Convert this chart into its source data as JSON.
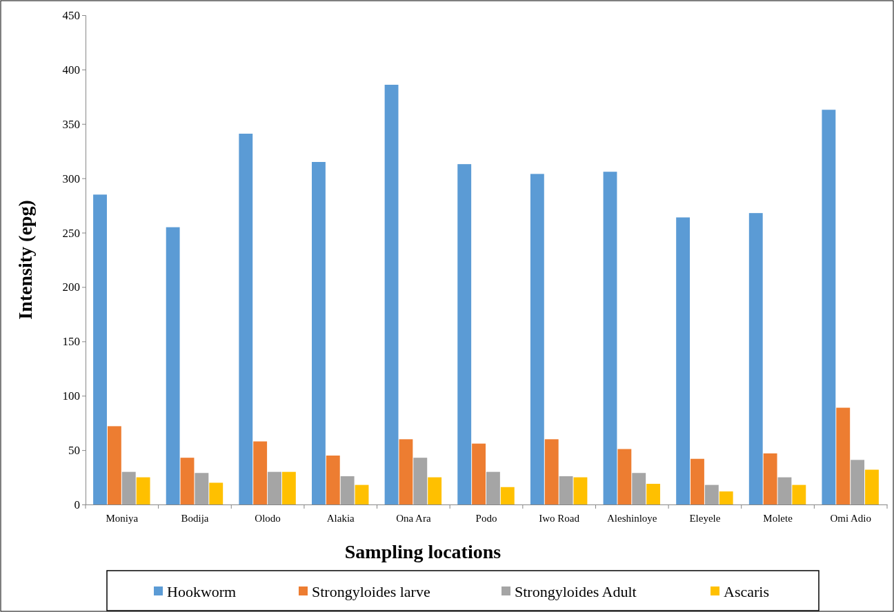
{
  "chart_data": {
    "type": "bar",
    "xlabel": "Sampling  locations",
    "ylabel": "Intensity (epg)",
    "categories": [
      "Moniya",
      "Bodija",
      "Olodo",
      "Alakia",
      "Ona Ara",
      "Podo",
      "Iwo Road",
      "Aleshinloye",
      "Eleyele",
      "Molete",
      "Omi Adio"
    ],
    "series": [
      {
        "name": "Hookworm",
        "color": "#5b9bd5",
        "values": [
          285,
          255,
          341,
          315,
          386,
          313,
          304,
          306,
          264,
          268,
          363
        ]
      },
      {
        "name": "Strongyloides larve",
        "color": "#ed7d31",
        "values": [
          72,
          43,
          58,
          45,
          60,
          56,
          60,
          51,
          42,
          47,
          89
        ]
      },
      {
        "name": "Strongyloides Adult",
        "color": "#a5a5a5",
        "values": [
          30,
          29,
          30,
          26,
          43,
          30,
          26,
          29,
          18,
          25,
          41
        ]
      },
      {
        "name": "Ascaris",
        "color": "#ffc000",
        "values": [
          25,
          20,
          30,
          18,
          25,
          16,
          25,
          19,
          12,
          18,
          32
        ]
      }
    ],
    "ylim": [
      0,
      450
    ],
    "yticks": [
      0,
      50,
      100,
      150,
      200,
      250,
      300,
      350,
      400,
      450
    ],
    "grid": false,
    "legend": "bottom"
  }
}
